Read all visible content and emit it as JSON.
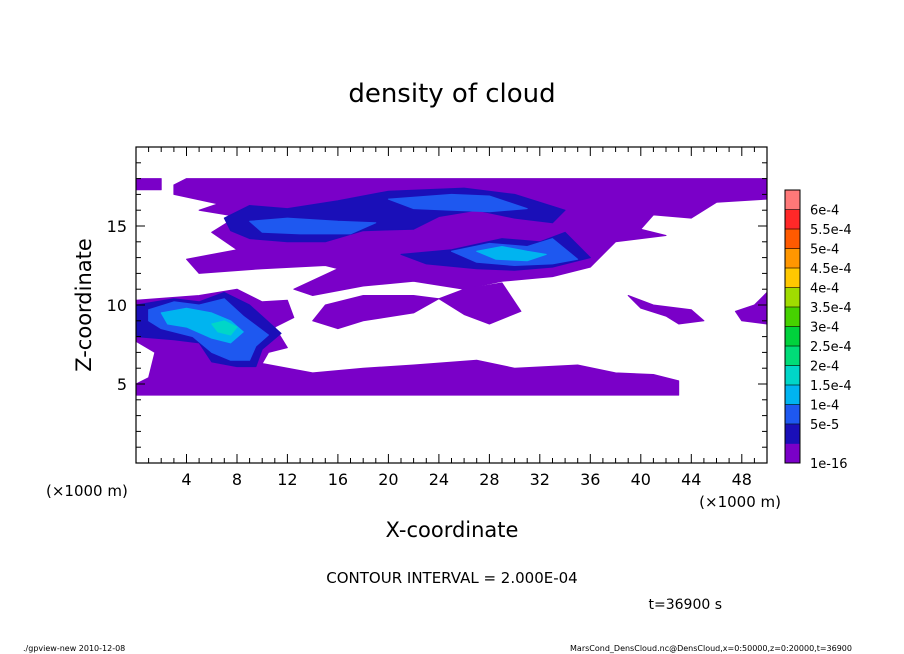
{
  "chart_data": {
    "type": "heatmap",
    "title": "density of cloud",
    "xlabel": "X-coordinate",
    "ylabel": "Z-coordinate",
    "x_unit": "(×1000 m)",
    "y_unit": "(×1000 m)",
    "xlim": [
      0,
      50
    ],
    "ylim": [
      0,
      20
    ],
    "x_ticks": [
      4,
      8,
      12,
      16,
      20,
      24,
      28,
      32,
      36,
      40,
      44,
      48
    ],
    "y_ticks": [
      5,
      10,
      15
    ],
    "contour_interval_text": "CONTOUR INTERVAL = 2.000E-04",
    "time_text": "t=36900 s",
    "colorbar": {
      "levels": [
        "1e-16",
        "5e-5",
        "1e-4",
        "1.5e-4",
        "2e-4",
        "2.5e-4",
        "3e-4",
        "3.5e-4",
        "4e-4",
        "4.5e-4",
        "5e-4",
        "5.5e-4",
        "6e-4"
      ],
      "colors": [
        "#7a00c8",
        "#1a0fb8",
        "#1e58f0",
        "#00b4f0",
        "#00d6c8",
        "#00dc78",
        "#00d23c",
        "#46d200",
        "#a0dc00",
        "#ffc800",
        "#ff9600",
        "#ff5a00",
        "#ff2828",
        "#ff7878"
      ]
    },
    "regions": [
      {
        "level": 1,
        "polygons": [
          [
            [
              0,
              4.3
            ],
            [
              43,
              4.3
            ],
            [
              43,
              5.2
            ],
            [
              41,
              5.6
            ],
            [
              38,
              5.7
            ],
            [
              35,
              6.2
            ],
            [
              30,
              6.0
            ],
            [
              27,
              6.5
            ],
            [
              22,
              6.2
            ],
            [
              18,
              6.0
            ],
            [
              14,
              5.7
            ],
            [
              10,
              6.3
            ],
            [
              10.5,
              7.0
            ],
            [
              12,
              7.3
            ],
            [
              11,
              8.6
            ],
            [
              12.5,
              9.2
            ],
            [
              12,
              10.3
            ],
            [
              10,
              10.2
            ],
            [
              8,
              11.0
            ],
            [
              5,
              10.6
            ],
            [
              0,
              10.3
            ],
            [
              0,
              7.7
            ],
            [
              1.5,
              7.0
            ],
            [
              1,
              5.4
            ],
            [
              0,
              5.0
            ]
          ],
          [
            [
              3,
              17.6
            ],
            [
              4,
              18.0
            ],
            [
              50,
              18.0
            ],
            [
              50,
              16.7
            ],
            [
              46,
              16.5
            ],
            [
              44,
              15.5
            ],
            [
              41,
              15.7
            ],
            [
              40,
              14.8
            ],
            [
              42,
              14.4
            ],
            [
              38,
              14.0
            ],
            [
              36,
              12.4
            ],
            [
              33,
              11.8
            ],
            [
              29,
              11.5
            ],
            [
              26,
              11.0
            ],
            [
              22,
              11.5
            ],
            [
              18,
              11.2
            ],
            [
              14,
              10.6
            ],
            [
              12.5,
              11.0
            ],
            [
              16,
              12.3
            ],
            [
              15,
              12.5
            ],
            [
              10,
              12.3
            ],
            [
              5,
              12.0
            ],
            [
              4,
              12.9
            ],
            [
              8,
              13.5
            ],
            [
              6,
              14.6
            ],
            [
              8,
              15.6
            ],
            [
              5,
              16.0
            ],
            [
              6.5,
              16.4
            ],
            [
              3,
              17.0
            ]
          ],
          [
            [
              29,
              11.4
            ],
            [
              30.5,
              9.6
            ],
            [
              28,
              8.8
            ],
            [
              26,
              9.4
            ],
            [
              24,
              10.4
            ],
            [
              26,
              11.0
            ]
          ],
          [
            [
              15,
              10.0
            ],
            [
              14,
              9.0
            ],
            [
              16,
              8.5
            ],
            [
              18,
              9.0
            ],
            [
              22,
              9.5
            ],
            [
              24,
              10.4
            ],
            [
              22,
              10.6
            ],
            [
              18,
              10.6
            ]
          ],
          [
            [
              39,
              10.6
            ],
            [
              41,
              10.0
            ],
            [
              44,
              9.7
            ],
            [
              45,
              9.0
            ],
            [
              43,
              8.8
            ],
            [
              42,
              9.3
            ],
            [
              40,
              9.8
            ]
          ],
          [
            [
              50,
              10.8
            ],
            [
              49,
              10.0
            ],
            [
              47.5,
              9.6
            ],
            [
              48,
              9.0
            ],
            [
              50,
              8.8
            ]
          ],
          [
            [
              0,
              18.0
            ],
            [
              2,
              18.0
            ],
            [
              2,
              17.3
            ],
            [
              0,
              17.3
            ]
          ]
        ]
      },
      {
        "level": 2,
        "polygons": [
          [
            [
              0,
              10.0
            ],
            [
              3,
              10.4
            ],
            [
              5,
              10.2
            ],
            [
              7,
              10.8
            ],
            [
              9,
              10.0
            ],
            [
              11.5,
              8.2
            ],
            [
              10,
              7.2
            ],
            [
              9.5,
              6.1
            ],
            [
              8,
              6.1
            ],
            [
              6,
              6.4
            ],
            [
              5,
              7.6
            ],
            [
              3,
              7.8
            ],
            [
              0,
              8.0
            ]
          ],
          [
            [
              7,
              15.5
            ],
            [
              9,
              16.3
            ],
            [
              12,
              16.1
            ],
            [
              16,
              16.6
            ],
            [
              20,
              17.2
            ],
            [
              26,
              17.4
            ],
            [
              30,
              17.0
            ],
            [
              34,
              16.0
            ],
            [
              33,
              15.2
            ],
            [
              30,
              15.5
            ],
            [
              27,
              16.0
            ],
            [
              24,
              15.6
            ],
            [
              22,
              14.8
            ],
            [
              18,
              14.7
            ],
            [
              15,
              14.0
            ],
            [
              12,
              14.0
            ],
            [
              9,
              14.2
            ],
            [
              7.5,
              14.7
            ]
          ],
          [
            [
              21,
              13.2
            ],
            [
              25,
              13.5
            ],
            [
              29,
              14.2
            ],
            [
              32,
              14.0
            ],
            [
              34,
              14.6
            ],
            [
              36,
              13.0
            ],
            [
              33,
              12.4
            ],
            [
              30,
              12.2
            ],
            [
              27,
              12.3
            ],
            [
              23,
              12.6
            ]
          ]
        ]
      },
      {
        "level": 3,
        "polygons": [
          [
            [
              1,
              9.7
            ],
            [
              3,
              10.2
            ],
            [
              5,
              10.0
            ],
            [
              7,
              10.4
            ],
            [
              8.5,
              9.3
            ],
            [
              10.5,
              8.1
            ],
            [
              9.5,
              7.4
            ],
            [
              9,
              6.5
            ],
            [
              7.5,
              6.5
            ],
            [
              6,
              7.0
            ],
            [
              4.5,
              8.0
            ],
            [
              2,
              8.5
            ],
            [
              1,
              9.0
            ]
          ],
          [
            [
              25,
              13.4
            ],
            [
              28,
              13.9
            ],
            [
              31,
              13.7
            ],
            [
              33,
              14.2
            ],
            [
              35,
              12.9
            ],
            [
              33,
              12.6
            ],
            [
              30,
              12.5
            ],
            [
              27,
              12.7
            ]
          ],
          [
            [
              9,
              15.3
            ],
            [
              12,
              15.5
            ],
            [
              16,
              15.3
            ],
            [
              19,
              15.2
            ],
            [
              17,
              14.5
            ],
            [
              13,
              14.5
            ],
            [
              10,
              14.6
            ]
          ],
          [
            [
              20,
              16.7
            ],
            [
              25,
              17.0
            ],
            [
              28,
              16.9
            ],
            [
              31,
              16.1
            ],
            [
              28,
              15.9
            ],
            [
              25,
              16.0
            ],
            [
              22,
              16.1
            ]
          ]
        ]
      },
      {
        "level": 4,
        "polygons": [
          [
            [
              2,
              9.5
            ],
            [
              4,
              9.8
            ],
            [
              6,
              9.5
            ],
            [
              7.5,
              9.0
            ],
            [
              8.5,
              8.3
            ],
            [
              7.5,
              7.6
            ],
            [
              6,
              7.9
            ],
            [
              4,
              8.6
            ],
            [
              2.5,
              8.8
            ]
          ],
          [
            [
              27,
              13.4
            ],
            [
              29,
              13.7
            ],
            [
              31,
              13.4
            ],
            [
              32.5,
              13.2
            ],
            [
              31,
              12.8
            ],
            [
              28.5,
              12.9
            ]
          ]
        ]
      },
      {
        "level": 5,
        "polygons": [
          [
            [
              6,
              8.8
            ],
            [
              7,
              9.0
            ],
            [
              8,
              8.6
            ],
            [
              7.5,
              8.1
            ],
            [
              6.5,
              8.3
            ]
          ]
        ]
      }
    ]
  },
  "footer": {
    "left": "./gpview-new  2010-12-08",
    "right": "MarsCond_DensCloud.nc@DensCloud,x=0:50000,z=0:20000,t=36900"
  }
}
